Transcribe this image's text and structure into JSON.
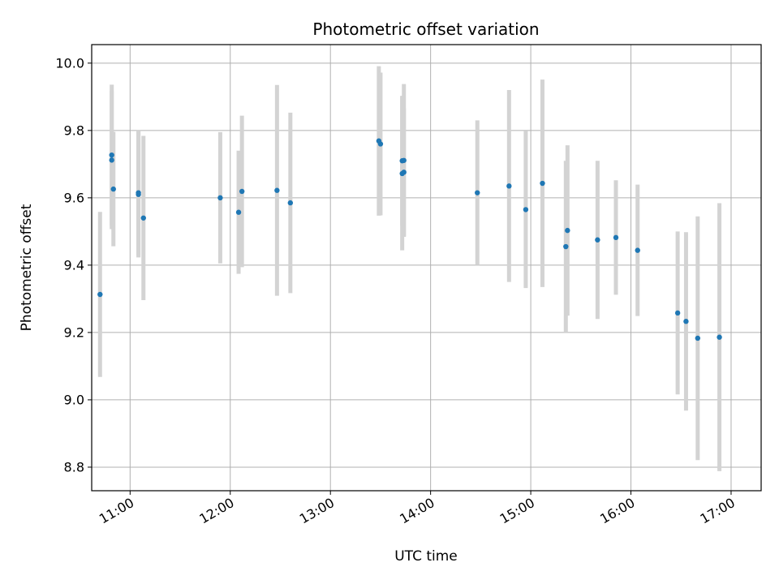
{
  "chart_data": {
    "type": "scatter",
    "title": "Photometric offset variation",
    "xlabel": "UTC time",
    "ylabel": "Photometric offset",
    "x_ticks": [
      "11:00",
      "12:00",
      "13:00",
      "14:00",
      "15:00",
      "16:00",
      "17:00"
    ],
    "y_ticks": [
      "8.8",
      "9.0",
      "9.2",
      "9.4",
      "9.6",
      "9.8",
      "10.0"
    ],
    "xlim": [
      "10:37",
      "17:18"
    ],
    "ylim": [
      8.73,
      10.055
    ],
    "grid": true,
    "marker_color": "#1f77b4",
    "errorbar_color": "#d3d3d3",
    "points": [
      {
        "x": "10:42",
        "y": 9.313,
        "err": 0.245
      },
      {
        "x": "10:49",
        "y": 9.712,
        "err": 0.205
      },
      {
        "x": "10:49",
        "y": 9.727,
        "err": 0.209
      },
      {
        "x": "10:50",
        "y": 9.626,
        "err": 0.17
      },
      {
        "x": "11:05",
        "y": 9.61,
        "err": 0.187
      },
      {
        "x": "11:05",
        "y": 9.615,
        "err": 0.187
      },
      {
        "x": "11:08",
        "y": 9.54,
        "err": 0.244
      },
      {
        "x": "11:54",
        "y": 9.6,
        "err": 0.195
      },
      {
        "x": "12:05",
        "y": 9.557,
        "err": 0.183
      },
      {
        "x": "12:07",
        "y": 9.619,
        "err": 0.225
      },
      {
        "x": "12:28",
        "y": 9.622,
        "err": 0.313
      },
      {
        "x": "12:36",
        "y": 9.585,
        "err": 0.268
      },
      {
        "x": "13:29",
        "y": 9.769,
        "err": 0.222
      },
      {
        "x": "13:30",
        "y": 9.76,
        "err": 0.212
      },
      {
        "x": "13:43",
        "y": 9.71,
        "err": 0.193
      },
      {
        "x": "13:44",
        "y": 9.711,
        "err": 0.227
      },
      {
        "x": "13:43",
        "y": 9.672,
        "err": 0.228
      },
      {
        "x": "13:44",
        "y": 9.676,
        "err": 0.19
      },
      {
        "x": "14:28",
        "y": 9.615,
        "err": 0.215
      },
      {
        "x": "14:47",
        "y": 9.635,
        "err": 0.285
      },
      {
        "x": "14:57",
        "y": 9.565,
        "err": 0.233
      },
      {
        "x": "15:07",
        "y": 9.643,
        "err": 0.308
      },
      {
        "x": "15:21",
        "y": 9.455,
        "err": 0.255
      },
      {
        "x": "15:22",
        "y": 9.503,
        "err": 0.253
      },
      {
        "x": "15:40",
        "y": 9.475,
        "err": 0.235
      },
      {
        "x": "15:51",
        "y": 9.482,
        "err": 0.17
      },
      {
        "x": "16:04",
        "y": 9.444,
        "err": 0.195
      },
      {
        "x": "16:28",
        "y": 9.258,
        "err": 0.242
      },
      {
        "x": "16:33",
        "y": 9.233,
        "err": 0.265
      },
      {
        "x": "16:40",
        "y": 9.183,
        "err": 0.362
      },
      {
        "x": "16:53",
        "y": 9.186,
        "err": 0.398
      }
    ]
  }
}
